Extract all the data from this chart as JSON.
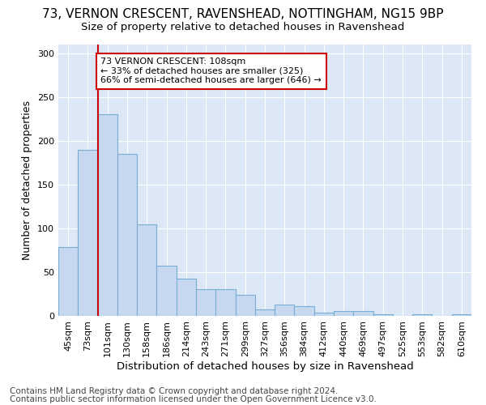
{
  "title_line1": "73, VERNON CRESCENT, RAVENSHEAD, NOTTINGHAM, NG15 9BP",
  "title_line2": "Size of property relative to detached houses in Ravenshead",
  "xlabel": "Distribution of detached houses by size in Ravenshead",
  "ylabel": "Number of detached properties",
  "footer_line1": "Contains HM Land Registry data © Crown copyright and database right 2024.",
  "footer_line2": "Contains public sector information licensed under the Open Government Licence v3.0.",
  "categories": [
    "45sqm",
    "73sqm",
    "101sqm",
    "130sqm",
    "158sqm",
    "186sqm",
    "214sqm",
    "243sqm",
    "271sqm",
    "299sqm",
    "327sqm",
    "356sqm",
    "384sqm",
    "412sqm",
    "440sqm",
    "469sqm",
    "497sqm",
    "525sqm",
    "553sqm",
    "582sqm",
    "610sqm"
  ],
  "values": [
    79,
    190,
    230,
    185,
    105,
    57,
    43,
    31,
    31,
    24,
    7,
    13,
    11,
    4,
    6,
    6,
    2,
    0,
    2,
    0,
    2
  ],
  "bar_color": "#c5d8f0",
  "bar_edge_color": "#7aadd4",
  "highlight_bar_index": 2,
  "highlight_color": "#cc0000",
  "annotation_line1": "73 VERNON CRESCENT: 108sqm",
  "annotation_line2": "← 33% of detached houses are smaller (325)",
  "annotation_line3": "66% of semi-detached houses are larger (646) →",
  "annotation_box_color": "white",
  "annotation_box_edge": "#cc0000",
  "ylim": [
    0,
    310
  ],
  "figure_bg": "#ffffff",
  "plot_bg": "#dce8f5",
  "grid_color": "#ffffff",
  "title1_fontsize": 11,
  "title2_fontsize": 9.5,
  "ylabel_fontsize": 9,
  "xlabel_fontsize": 9.5,
  "tick_fontsize": 8,
  "annotation_fontsize": 8,
  "footer_fontsize": 7.5
}
